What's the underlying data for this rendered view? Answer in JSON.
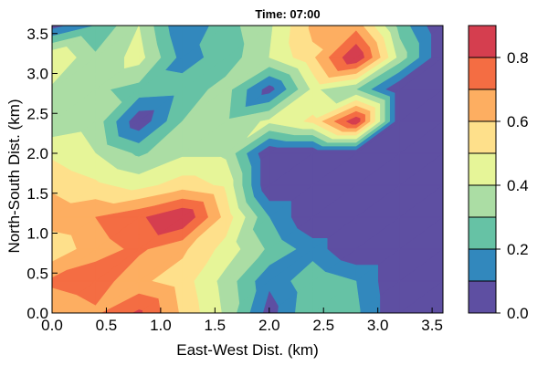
{
  "chart_data": {
    "type": "contour",
    "title": "Time: 07:00",
    "xlabel": "East-West Dist. (km)",
    "ylabel": "North-South Dist. (km)",
    "xlim": [
      0,
      3.6
    ],
    "ylim": [
      0,
      3.6
    ],
    "grid": false,
    "x": [
      0,
      0.4,
      0.8,
      1.2,
      1.6,
      2.0,
      2.4,
      2.8,
      3.2,
      3.6
    ],
    "y": [
      0,
      0.4,
      0.8,
      1.2,
      1.6,
      2.0,
      2.4,
      2.8,
      3.2,
      3.6
    ],
    "z": [
      [
        0.62,
        0.68,
        0.82,
        0.58,
        0.38,
        0.05,
        0.3,
        0.22,
        0.0,
        0.0
      ],
      [
        0.72,
        0.76,
        0.62,
        0.55,
        0.36,
        0.12,
        0.28,
        0.2,
        0.0,
        0.0
      ],
      [
        0.52,
        0.66,
        0.72,
        0.62,
        0.46,
        0.28,
        0.15,
        0.0,
        0.0,
        0.0
      ],
      [
        0.66,
        0.7,
        0.78,
        0.9,
        0.56,
        0.2,
        0.0,
        0.0,
        0.0,
        0.0
      ],
      [
        0.58,
        0.52,
        0.46,
        0.55,
        0.48,
        0.0,
        0.0,
        0.0,
        0.0,
        0.0
      ],
      [
        0.48,
        0.4,
        0.28,
        0.38,
        0.38,
        0.0,
        0.0,
        0.0,
        0.0,
        0.0
      ],
      [
        0.32,
        0.36,
        0.02,
        0.3,
        0.32,
        0.42,
        0.52,
        0.88,
        0.0,
        0.0
      ],
      [
        0.38,
        0.32,
        0.26,
        0.24,
        0.34,
        0.05,
        0.42,
        0.3,
        0.0,
        0.0
      ],
      [
        0.5,
        0.32,
        0.44,
        0.16,
        0.24,
        0.4,
        0.58,
        0.9,
        0.36,
        0.0
      ],
      [
        0.05,
        0.2,
        0.4,
        0.1,
        0.26,
        0.38,
        0.62,
        0.66,
        0.26,
        0.0
      ]
    ],
    "levels": [
      0.0,
      0.1,
      0.2,
      0.3,
      0.4,
      0.5,
      0.6,
      0.7,
      0.8,
      0.9
    ],
    "colors": [
      "#5E4FA2",
      "#3288BD",
      "#66C2A5",
      "#ABDDA4",
      "#E6F598",
      "#FEE08B",
      "#FDAE61",
      "#F46D43",
      "#D53E4F"
    ],
    "x_ticks": [
      "0.0",
      "0.5",
      "1.0",
      "1.5",
      "2.0",
      "2.5",
      "3.0",
      "3.5"
    ],
    "y_ticks": [
      "0.0",
      "0.5",
      "1.0",
      "1.5",
      "2.0",
      "2.5",
      "3.0",
      "3.5"
    ],
    "colorbar": {
      "ticks": [
        "0.0",
        "0.2",
        "0.4",
        "0.6",
        "0.8"
      ]
    }
  }
}
